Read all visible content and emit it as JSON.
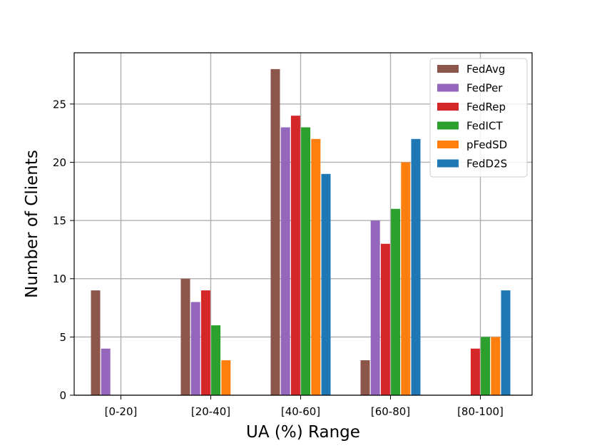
{
  "chart_data": {
    "type": "bar",
    "title": "",
    "xlabel": "UA (%) Range",
    "ylabel": "Number of Clients",
    "categories": [
      "[0-20]",
      "[20-40]",
      "[40-60]",
      "[60-80]",
      "[80-100]"
    ],
    "ylim": [
      0,
      29.4
    ],
    "yticks": [
      0,
      5,
      10,
      15,
      20,
      25
    ],
    "grid": true,
    "legend_position": "top-right",
    "series": [
      {
        "name": "FedAvg",
        "color": "#8c564b",
        "values": [
          9,
          10,
          28,
          3,
          0
        ]
      },
      {
        "name": "FedPer",
        "color": "#9467bd",
        "values": [
          4,
          8,
          23,
          15,
          0
        ]
      },
      {
        "name": "FedRep",
        "color": "#d62728",
        "values": [
          0,
          9,
          24,
          13,
          4
        ]
      },
      {
        "name": "FedICT",
        "color": "#2ca02c",
        "values": [
          0,
          6,
          23,
          16,
          5
        ]
      },
      {
        "name": "pFedSD",
        "color": "#ff7f0e",
        "values": [
          0,
          3,
          22,
          20,
          5
        ]
      },
      {
        "name": "FedD2S",
        "color": "#1f77b4",
        "values": [
          0,
          0,
          19,
          22,
          9
        ]
      }
    ]
  }
}
